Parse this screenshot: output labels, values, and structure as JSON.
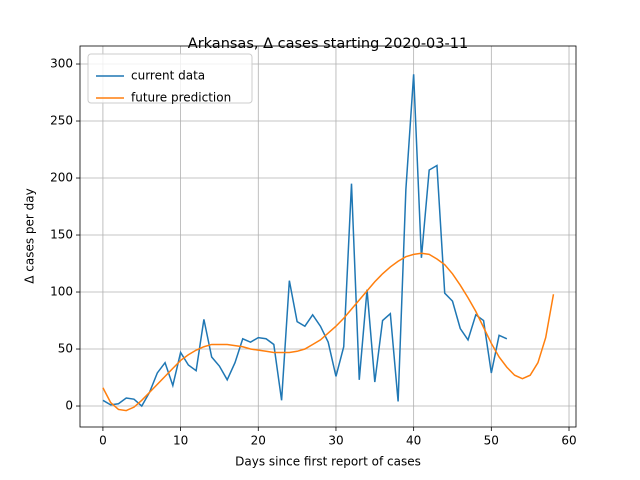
{
  "chart_data": {
    "type": "line",
    "title": "Arkansas, Δ cases starting 2020-03-11",
    "x_label": "Days since first report of cases",
    "y_label": "Δ cases per day",
    "x": [
      0,
      1,
      2,
      3,
      4,
      5,
      6,
      7,
      8,
      9,
      10,
      11,
      12,
      13,
      14,
      15,
      16,
      17,
      18,
      19,
      20,
      21,
      22,
      23,
      24,
      25,
      26,
      27,
      28,
      29,
      30,
      31,
      32,
      33,
      34,
      35,
      36,
      37,
      38,
      39,
      40,
      41,
      42,
      43,
      44,
      45,
      46,
      47,
      48,
      49,
      50,
      51,
      52,
      53,
      54,
      55,
      56,
      57,
      58
    ],
    "series": [
      {
        "name": "current data",
        "color": "#1f77b4",
        "values": [
          5,
          1,
          2,
          7,
          6,
          0,
          12,
          29,
          38,
          18,
          47,
          36,
          31,
          76,
          43,
          35,
          23,
          38,
          59,
          56,
          60,
          59,
          54,
          5,
          110,
          74,
          70,
          80,
          70,
          56,
          26,
          52,
          195,
          23,
          102,
          21,
          75,
          81,
          4,
          190,
          291,
          130,
          207,
          211,
          99,
          92,
          68,
          58,
          80,
          75,
          29,
          62,
          59,
          null,
          null,
          null,
          null,
          null,
          null
        ]
      },
      {
        "name": "future prediction",
        "color": "#ff7f0e",
        "values": [
          16,
          3,
          -3,
          -4,
          -1,
          5,
          12,
          19,
          26,
          33,
          40,
          45,
          49,
          52,
          54,
          54,
          54,
          53,
          52,
          50,
          49,
          48,
          47,
          47,
          47,
          48,
          50,
          54,
          58,
          64,
          70,
          77,
          85,
          93,
          101,
          109,
          116,
          122,
          127,
          131,
          133,
          134,
          133,
          129,
          124,
          116,
          106,
          95,
          83,
          69,
          55,
          43,
          34,
          27,
          24,
          27,
          38,
          60,
          98
        ]
      }
    ],
    "xlim": [
      -2.95,
      60.9
    ],
    "ylim": [
      -18.4,
      315.8
    ],
    "xticks": [
      0,
      10,
      20,
      30,
      40,
      50,
      60
    ],
    "yticks": [
      0,
      50,
      100,
      150,
      200,
      250,
      300
    ],
    "grid": true,
    "legend": "upper left"
  }
}
